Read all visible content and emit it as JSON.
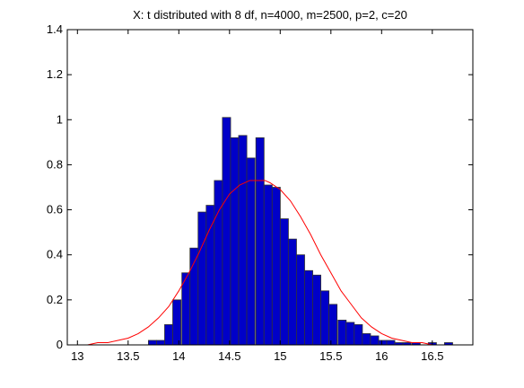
{
  "chart_data": {
    "type": "bar",
    "title": "X: t distributed with 8 df, n=4000, m=2500, p=2, c=20",
    "xlabel": "",
    "ylabel": "",
    "xlim": [
      12.9,
      16.9
    ],
    "ylim": [
      0,
      1.4
    ],
    "xticks": [
      13,
      13.5,
      14,
      14.5,
      15,
      15.5,
      16,
      16.5
    ],
    "xtick_labels": [
      "13",
      "13.5",
      "14",
      "14.5",
      "15",
      "15.5",
      "16",
      "16.5"
    ],
    "yticks": [
      0,
      0.2,
      0.4,
      0.6,
      0.8,
      1,
      1.2,
      1.4
    ],
    "ytick_labels": [
      "0",
      "0.2",
      "0.4",
      "0.6",
      "0.8",
      "1",
      "1.2",
      "1.4"
    ],
    "grid": false,
    "bar_color": "#0000c8",
    "bar_edge_color": "#333333",
    "curve_color": "#ff0000",
    "histogram": {
      "bin_width": 0.0808,
      "bin_starts": [
        13.7,
        13.78,
        13.86,
        13.94,
        14.03,
        14.11,
        14.19,
        14.27,
        14.35,
        14.43,
        14.51,
        14.59,
        14.67,
        14.76,
        14.84,
        14.92,
        15.0,
        15.08,
        15.16,
        15.24,
        15.32,
        15.4,
        15.48,
        15.57,
        15.65,
        15.73,
        15.81,
        15.89,
        15.97,
        16.05,
        16.13,
        16.21,
        16.3,
        16.38,
        16.46,
        16.54,
        16.62,
        16.7,
        16.78
      ],
      "values": [
        0.02,
        0.02,
        0.09,
        0.2,
        0.32,
        0.43,
        0.59,
        0.62,
        0.73,
        1.01,
        0.92,
        0.93,
        0.83,
        0.92,
        0.71,
        0.7,
        0.56,
        0.47,
        0.4,
        0.33,
        0.31,
        0.24,
        0.18,
        0.11,
        0.1,
        0.09,
        0.05,
        0.04,
        0.02,
        0.02,
        0.01,
        0.01,
        0.01,
        0.0,
        0.01,
        0.0,
        0.01,
        0.0,
        0.0
      ]
    },
    "series": [
      {
        "type": "line",
        "x": [
          12.9,
          13.0,
          13.1,
          13.2,
          13.3,
          13.4,
          13.5,
          13.6,
          13.7,
          13.8,
          13.9,
          14.0,
          14.1,
          14.2,
          14.3,
          14.4,
          14.5,
          14.6,
          14.7,
          14.8,
          14.85,
          14.9,
          15.0,
          15.1,
          15.2,
          15.3,
          15.4,
          15.5,
          15.6,
          15.7,
          15.8,
          15.9,
          16.0,
          16.1,
          16.2,
          16.3,
          16.4,
          16.5,
          16.6,
          16.7,
          16.8,
          16.9
        ],
        "y": [
          0.0,
          0.0,
          0.0,
          0.01,
          0.01,
          0.02,
          0.03,
          0.05,
          0.08,
          0.12,
          0.17,
          0.24,
          0.32,
          0.41,
          0.51,
          0.6,
          0.67,
          0.71,
          0.73,
          0.73,
          0.73,
          0.72,
          0.69,
          0.64,
          0.57,
          0.49,
          0.4,
          0.32,
          0.24,
          0.18,
          0.12,
          0.08,
          0.05,
          0.03,
          0.02,
          0.01,
          0.01,
          0.0,
          0.0,
          0.0,
          0.0,
          0.0
        ]
      }
    ]
  }
}
